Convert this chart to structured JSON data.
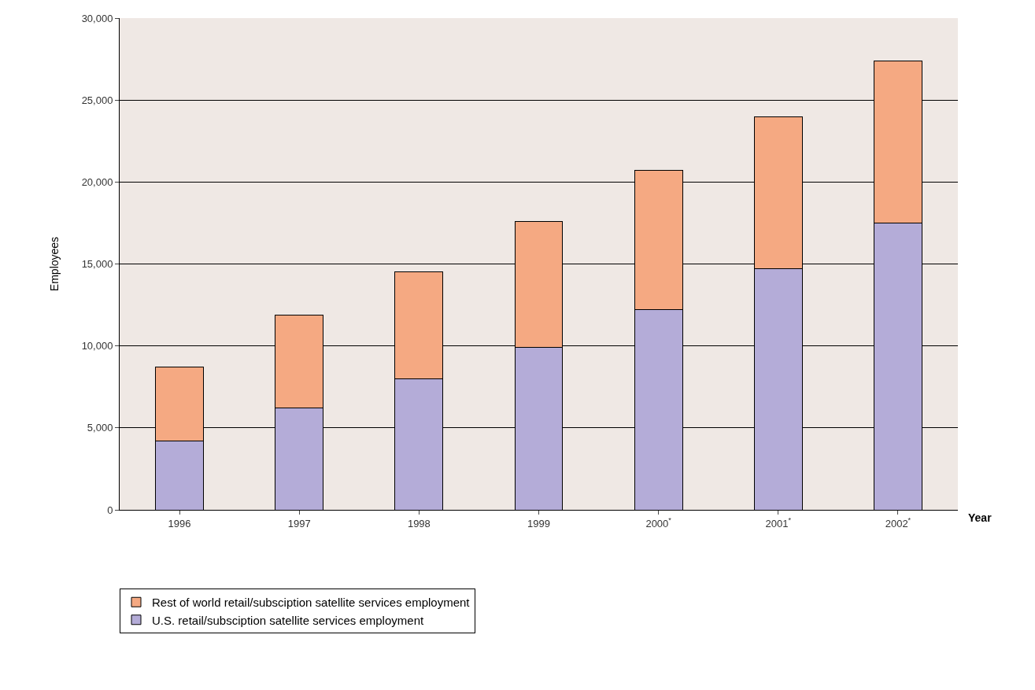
{
  "chart_data": {
    "type": "bar",
    "stacked": true,
    "xlabel": "Year",
    "ylabel": "Employees",
    "categories": [
      "1996",
      "1997",
      "1998",
      "1999",
      "2000$^{*}$",
      "2001$^{*}$",
      "2002$^{*}$"
    ],
    "series": [
      {
        "name": "U.S. retail/subsciption satellite services employment",
        "color": "#b4acd8",
        "values": [
          4200,
          6200,
          8000,
          9900,
          12200,
          14700,
          17500
        ]
      },
      {
        "name": "Rest of world retail/subsciption satellite services employment",
        "color": "#f5a982",
        "values": [
          4500,
          5700,
          6500,
          7700,
          8500,
          9300,
          9900
        ]
      }
    ],
    "ylim": [
      0,
      30000
    ],
    "yticks": [
      {
        "value": 0,
        "label": "0"
      },
      {
        "value": 5000,
        "label": "5,000"
      },
      {
        "value": 10000,
        "label": "10,000"
      },
      {
        "value": 15000,
        "label": "15,000"
      },
      {
        "value": 20000,
        "label": "20,000"
      },
      {
        "value": 25000,
        "label": "25,000"
      },
      {
        "value": 30000,
        "label": "30,000"
      }
    ],
    "grid": "y",
    "legend": "bottom"
  }
}
